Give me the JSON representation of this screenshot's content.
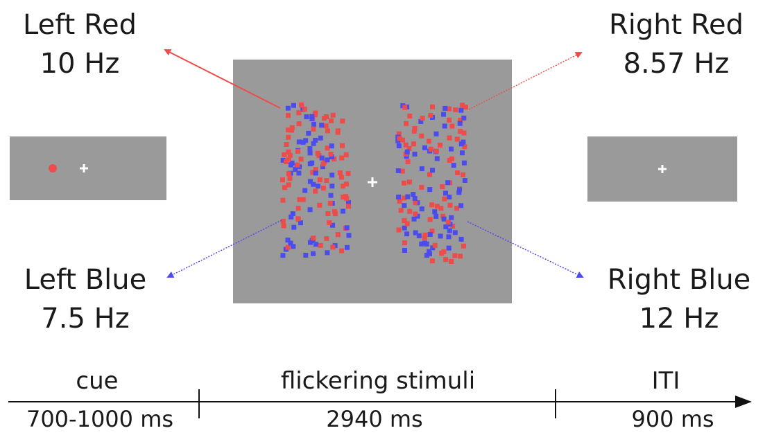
{
  "labels": {
    "left_red": {
      "name": "Left Red",
      "freq": "10 Hz"
    },
    "right_red": {
      "name": "Right Red",
      "freq": "8.57 Hz"
    },
    "left_blue": {
      "name": "Left Blue",
      "freq": "7.5 Hz"
    },
    "right_blue": {
      "name": "Right Blue",
      "freq": "12 Hz"
    }
  },
  "timeline": {
    "phases": [
      {
        "name": "cue",
        "duration": "700-1000 ms"
      },
      {
        "name": "flickering stimuli",
        "duration": "2940 ms"
      },
      {
        "name": "ITI",
        "duration": "900 ms"
      }
    ]
  },
  "colors": {
    "red": "#ee4b4b",
    "blue": "#4b4bee",
    "screen": "#9a9a9a",
    "fixation": "#ffffff"
  },
  "icons": {
    "fixation": "plus-cross",
    "cue": "red-dot"
  }
}
